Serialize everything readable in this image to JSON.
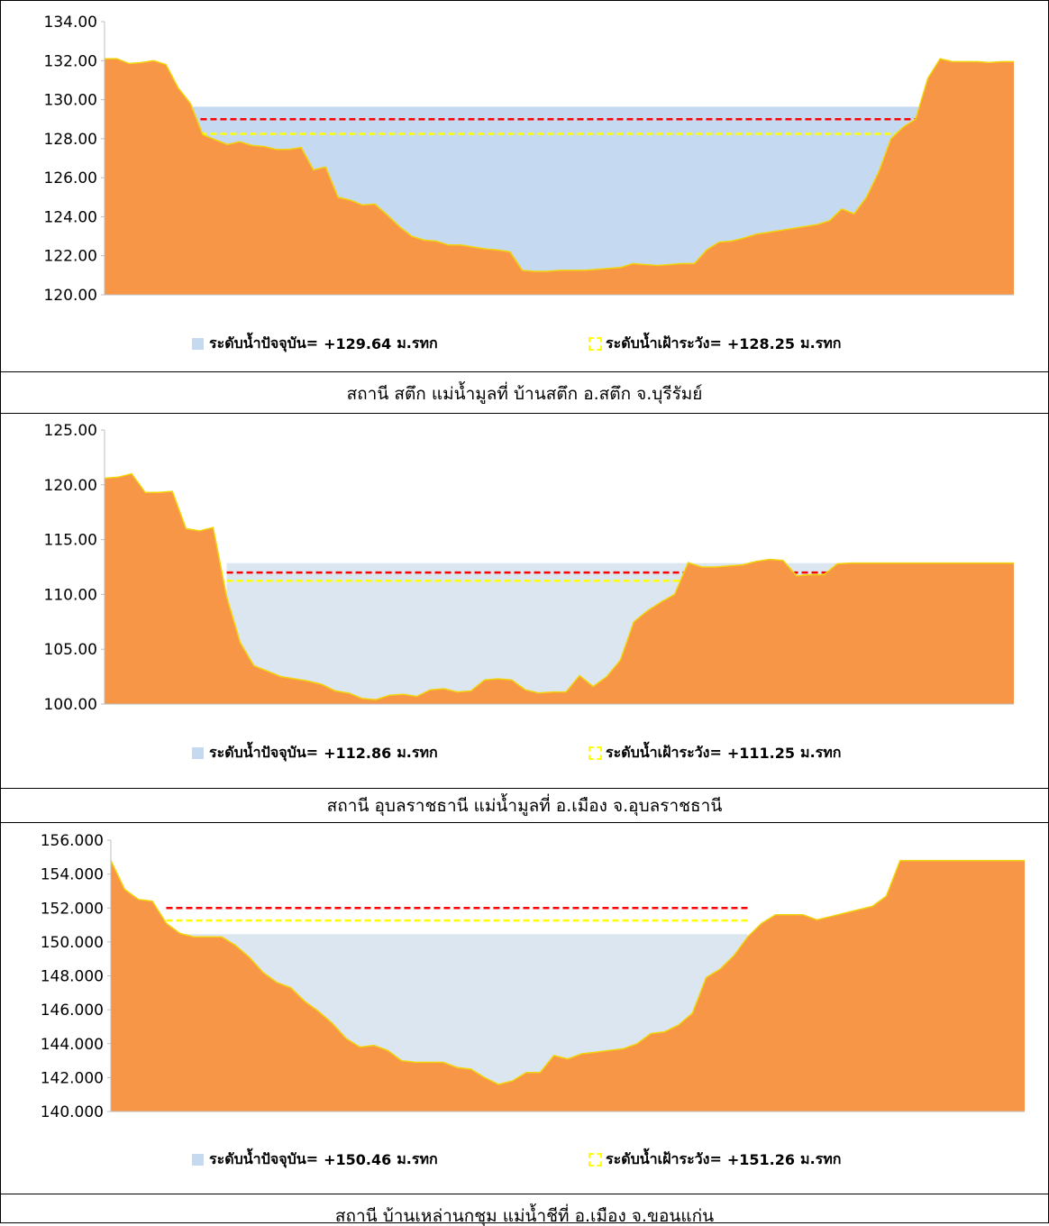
{
  "stations": [
    {
      "caption": "สถานี สตึก แม่น้ำมูลที่ บ้านสตึก อ.สตึก จ.บุรีรัมย์",
      "legend": {
        "current_label": "ระดับน้ำปัจจุบัน=",
        "current_value": "+129.64",
        "watch_label": "ระดับน้ำเฝ้าระวัง=",
        "watch_value": "+128.25",
        "unit": "ม.รทก"
      }
    },
    {
      "caption": "สถานี อุบลราชธานี แม่น้ำมูลที่ อ.เมือง จ.อุบลราชธานี",
      "legend": {
        "current_label": "ระดับน้ำปัจจุบัน=",
        "current_value": "+112.86",
        "watch_label": "ระดับน้ำเฝ้าระวัง=",
        "watch_value": "+111.25",
        "unit": "ม.รทก"
      }
    },
    {
      "caption": "สถานี บ้านเหล่านกชุม แม่น้ำชีที่ อ.เมือง จ.ขอนแก่น",
      "legend": {
        "current_label": "ระดับน้ำปัจจุบัน=",
        "current_value": "+150.46",
        "watch_label": "ระดับน้ำเฝ้าระวัง=",
        "watch_value": "+151.26",
        "unit": "ม.รทก"
      }
    }
  ],
  "colors": {
    "ground": "#f79646",
    "ground_edge": "#f2d40a",
    "water_1": "#c5d9f1",
    "water_2": "#dce6f1",
    "water_3": "#dce6f1",
    "critical_line": "#ff0000",
    "watch_line": "#ffff00",
    "axis": "#bfbfbf"
  },
  "chart_data": [
    {
      "type": "area",
      "x": [
        0,
        1,
        2,
        3,
        4,
        5,
        6,
        7,
        8,
        9,
        10,
        11,
        12,
        13,
        14,
        15,
        16,
        17,
        18,
        19,
        20,
        21,
        22,
        23,
        24,
        25,
        26,
        27,
        28,
        29,
        30,
        31,
        32,
        33,
        34,
        35,
        36,
        37,
        38,
        39,
        40,
        41,
        42,
        43,
        44,
        45,
        46,
        47,
        48,
        49,
        50,
        51,
        52,
        53,
        54,
        55,
        56,
        57,
        58,
        59,
        60,
        61,
        62,
        63,
        64,
        65,
        66,
        67,
        68,
        69,
        70,
        71,
        72,
        73,
        74
      ],
      "y": [
        132.1,
        132.1,
        131.85,
        131.9,
        132.0,
        131.8,
        130.6,
        129.8,
        128.2,
        127.95,
        127.7,
        127.85,
        127.65,
        127.6,
        127.45,
        127.45,
        127.55,
        126.4,
        126.55,
        125.0,
        124.85,
        124.6,
        124.65,
        124.1,
        123.5,
        123.0,
        122.8,
        122.75,
        122.55,
        122.55,
        122.45,
        122.35,
        122.3,
        122.2,
        121.25,
        121.2,
        121.2,
        121.25,
        121.25,
        121.25,
        121.3,
        121.35,
        121.4,
        121.6,
        121.55,
        121.5,
        121.55,
        121.6,
        121.6,
        122.3,
        122.7,
        122.75,
        122.9,
        123.1,
        123.2,
        123.3,
        123.4,
        123.5,
        123.6,
        123.8,
        124.4,
        124.15,
        125.0,
        126.3,
        128.0,
        128.6,
        129.0,
        131.1,
        132.1,
        131.95,
        131.95,
        131.95,
        131.9,
        131.95,
        131.95
      ],
      "ylim": [
        120,
        134
      ],
      "yticks": [
        "120.00",
        "122.00",
        "124.00",
        "126.00",
        "128.00",
        "130.00",
        "132.00",
        "134.00"
      ],
      "current_level": 129.64,
      "watch_level": 128.25,
      "critical_level": 129.0,
      "water_x_range": [
        7,
        67
      ]
    },
    {
      "type": "area",
      "x": [
        0,
        1,
        2,
        3,
        4,
        5,
        6,
        7,
        8,
        9,
        10,
        11,
        12,
        13,
        14,
        15,
        16,
        17,
        18,
        19,
        20,
        21,
        22,
        23,
        24,
        25,
        26,
        27,
        28,
        29,
        30,
        31,
        32,
        33,
        34,
        35,
        36,
        37,
        38,
        39,
        40,
        41,
        42,
        43,
        44,
        45,
        46,
        47,
        48,
        49,
        50,
        51,
        52,
        53,
        54,
        55,
        56,
        57,
        58,
        59,
        60,
        61,
        62,
        63,
        64,
        65,
        66,
        67
      ],
      "y": [
        120.6,
        120.7,
        121.0,
        119.3,
        119.3,
        119.4,
        116.0,
        115.8,
        116.1,
        109.8,
        105.6,
        103.5,
        103.0,
        102.5,
        102.3,
        102.1,
        101.8,
        101.2,
        101.0,
        100.5,
        100.4,
        100.8,
        100.9,
        100.7,
        101.3,
        101.4,
        101.1,
        101.2,
        102.2,
        102.3,
        102.2,
        101.3,
        101.0,
        101.1,
        101.1,
        102.6,
        101.6,
        102.5,
        104.0,
        107.5,
        108.5,
        109.3,
        110.0,
        112.9,
        112.5,
        112.5,
        112.6,
        112.7,
        113.0,
        113.2,
        113.1,
        111.7,
        111.8,
        111.8,
        112.8,
        112.86,
        112.86,
        112.86,
        112.86,
        112.86,
        112.86,
        112.86,
        112.86,
        112.86,
        112.86,
        112.86,
        112.86,
        112.86
      ],
      "ylim": [
        100,
        125
      ],
      "yticks": [
        "100.00",
        "105.00",
        "110.00",
        "115.00",
        "120.00",
        "125.00"
      ],
      "current_level": 112.86,
      "watch_level": 111.25,
      "critical_level": 112.0,
      "water_x_range": [
        9,
        54
      ]
    },
    {
      "type": "area",
      "x": [
        0,
        1,
        2,
        3,
        4,
        5,
        6,
        7,
        8,
        9,
        10,
        11,
        12,
        13,
        14,
        15,
        16,
        17,
        18,
        19,
        20,
        21,
        22,
        23,
        24,
        25,
        26,
        27,
        28,
        29,
        30,
        31,
        32,
        33,
        34,
        35,
        36,
        37,
        38,
        39,
        40,
        41,
        42,
        43,
        44,
        45,
        46,
        47,
        48,
        49,
        50,
        51,
        52,
        53,
        54,
        55,
        56,
        57,
        58,
        59,
        60,
        61,
        62,
        63,
        64,
        65,
        66
      ],
      "y": [
        154.8,
        153.1,
        152.5,
        152.4,
        151.1,
        150.5,
        150.3,
        150.3,
        150.3,
        149.8,
        149.1,
        148.2,
        147.6,
        147.3,
        146.5,
        145.9,
        145.2,
        144.3,
        143.8,
        143.9,
        143.6,
        143.0,
        142.9,
        142.9,
        142.9,
        142.6,
        142.5,
        142.0,
        141.6,
        141.8,
        142.3,
        142.3,
        143.3,
        143.1,
        143.4,
        143.5,
        143.6,
        143.7,
        144.0,
        144.6,
        144.7,
        145.1,
        145.8,
        147.9,
        148.4,
        149.2,
        150.3,
        151.1,
        151.6,
        151.6,
        151.6,
        151.3,
        151.5,
        151.7,
        151.9,
        152.1,
        152.7,
        154.8,
        154.8,
        154.8,
        154.8,
        154.8,
        154.8,
        154.8,
        154.8,
        154.8,
        154.8
      ],
      "ylim": [
        140,
        156
      ],
      "yticks": [
        "140.000",
        "142.000",
        "144.000",
        "146.000",
        "148.000",
        "150.000",
        "152.000",
        "154.000",
        "156.000"
      ],
      "current_level": 150.46,
      "watch_level": 151.26,
      "critical_level": 152.0,
      "water_x_range": [
        4,
        46
      ]
    }
  ]
}
